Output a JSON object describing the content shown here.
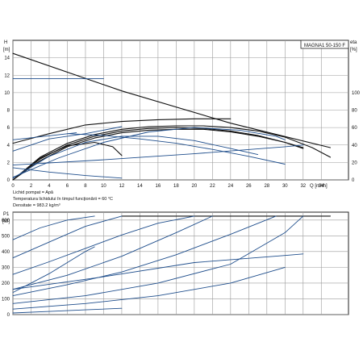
{
  "model_label": "MAGNA1 50-150 F",
  "chart_data": [
    {
      "type": "line",
      "name": "pump-curve",
      "ylabel_lines": [
        "H",
        "[m]"
      ],
      "y2label_lines": [
        "eta",
        "[%]"
      ],
      "xlabel": "Q [m³/h]",
      "xlim": [
        0,
        37
      ],
      "ylim": [
        0,
        16
      ],
      "y2lim": [
        0,
        160
      ],
      "grid": true,
      "x_ticks": [
        0,
        2,
        4,
        6,
        8,
        10,
        12,
        14,
        16,
        18,
        20,
        22,
        24,
        26,
        28,
        30,
        32,
        34
      ],
      "y_ticks": [
        0,
        2,
        4,
        6,
        8,
        10,
        12,
        14
      ],
      "y2_ticks": [
        0,
        20,
        40,
        60,
        80,
        100
      ],
      "notes": [
        "Lichid pompat = Apă",
        "Temperatura lichidului în timpul funcţionării = 60 °C",
        "Densitate = 983.2 kg/m³"
      ],
      "colors": {
        "black": "#111111",
        "blue": "#1f4e8c",
        "grid": "#9a9a9a"
      },
      "series": [
        {
          "color": "black",
          "x": [
            0,
            12,
            24,
            35
          ],
          "y": [
            14.5,
            10.2,
            6.5,
            3.7
          ]
        },
        {
          "color": "black",
          "x": [
            0,
            3,
            6,
            9,
            12,
            15,
            18,
            21,
            24,
            27,
            30,
            33,
            35
          ],
          "y": [
            0,
            2.6,
            4.2,
            5.2,
            5.8,
            6.1,
            6.2,
            6.2,
            6.0,
            5.6,
            4.9,
            3.7,
            2.6
          ]
        },
        {
          "color": "black",
          "x": [
            0,
            3,
            6,
            9,
            12,
            15,
            18,
            21,
            24,
            27,
            30,
            32
          ],
          "y": [
            0,
            2.4,
            4.0,
            5.0,
            5.6,
            5.9,
            6.0,
            5.9,
            5.6,
            5.1,
            4.3,
            3.6
          ]
        },
        {
          "color": "black",
          "x": [
            0,
            3,
            6,
            9,
            12,
            15,
            18,
            21,
            24,
            27,
            30,
            32
          ],
          "y": [
            0,
            2.2,
            3.8,
            4.8,
            5.4,
            5.7,
            5.8,
            5.8,
            5.5,
            5.0,
            4.3,
            3.7
          ]
        },
        {
          "color": "black",
          "x": [
            0,
            3,
            6,
            9,
            11,
            12
          ],
          "y": [
            0,
            2.5,
            3.9,
            4.3,
            3.8,
            2.8
          ]
        },
        {
          "color": "black",
          "x": [
            0,
            4,
            8,
            12,
            16,
            20,
            24
          ],
          "y": [
            4.2,
            5.3,
            6.3,
            6.7,
            6.9,
            7.0,
            7.0
          ]
        },
        {
          "color": "blue",
          "x": [
            0,
            5,
            10,
            15,
            20,
            25,
            29,
            30
          ],
          "y": [
            0.3,
            2.5,
            4.3,
            5.5,
            6.0,
            5.7,
            5.0,
            4.6
          ]
        },
        {
          "color": "blue",
          "x": [
            0,
            4,
            8,
            12,
            16,
            20,
            24,
            27
          ],
          "y": [
            0.2,
            2.7,
            4.3,
            5.0,
            5.0,
            4.5,
            3.6,
            2.9
          ]
        },
        {
          "color": "blue",
          "x": [
            0,
            4,
            8,
            12
          ],
          "y": [
            3.3,
            4.7,
            5.3,
            6.1
          ]
        },
        {
          "color": "blue",
          "x": [
            0,
            7
          ],
          "y": [
            4.6,
            5.4
          ]
        },
        {
          "color": "blue",
          "x": [
            0,
            10,
            20,
            30,
            32
          ],
          "y": [
            1.7,
            2.3,
            3.0,
            3.8,
            4.0
          ]
        },
        {
          "color": "blue",
          "x": [
            0,
            4,
            8,
            12
          ],
          "y": [
            1.4,
            0.9,
            0.5,
            0.2
          ]
        },
        {
          "color": "blue",
          "x": [
            6,
            10,
            14,
            18,
            22,
            26,
            30
          ],
          "y": [
            5.3,
            5.1,
            4.7,
            4.2,
            3.5,
            2.7,
            1.8
          ]
        },
        {
          "color": "blue",
          "x": [
            0,
            10
          ],
          "y": [
            11.6,
            11.6
          ]
        }
      ]
    },
    {
      "type": "line",
      "name": "power-curve",
      "ylabel_lines": [
        "P1",
        "[W]"
      ],
      "xlim": [
        0,
        37
      ],
      "ylim": [
        0,
        650
      ],
      "grid": true,
      "y_ticks": [
        0,
        100,
        200,
        300,
        400,
        500,
        600
      ],
      "colors": {
        "black": "#111111",
        "blue": "#1f4e8c",
        "grid": "#9a9a9a"
      },
      "series": [
        {
          "color": "black",
          "x": [
            12,
            35
          ],
          "y": [
            625,
            625
          ]
        },
        {
          "color": "blue",
          "x": [
            0,
            3,
            6,
            9
          ],
          "y": [
            475,
            550,
            600,
            625
          ]
        },
        {
          "color": "blue",
          "x": [
            0,
            4,
            8,
            12
          ],
          "y": [
            360,
            460,
            560,
            625
          ]
        },
        {
          "color": "blue",
          "x": [
            0,
            4,
            8,
            12,
            16,
            20
          ],
          "y": [
            255,
            335,
            420,
            505,
            580,
            625
          ]
        },
        {
          "color": "blue",
          "x": [
            0,
            6,
            12,
            18,
            22
          ],
          "y": [
            160,
            250,
            370,
            520,
            625
          ]
        },
        {
          "color": "blue",
          "x": [
            0,
            6,
            12,
            18,
            24,
            29
          ],
          "y": [
            120,
            190,
            270,
            380,
            510,
            625
          ]
        },
        {
          "color": "blue",
          "x": [
            0,
            8,
            16,
            24,
            30,
            32
          ],
          "y": [
            70,
            120,
            200,
            320,
            520,
            625
          ]
        },
        {
          "color": "blue",
          "x": [
            0,
            8,
            16,
            24,
            30
          ],
          "y": [
            35,
            70,
            120,
            200,
            300
          ]
        },
        {
          "color": "blue",
          "x": [
            0,
            4,
            8,
            12
          ],
          "y": [
            10,
            20,
            30,
            40
          ]
        },
        {
          "color": "blue",
          "x": [
            0,
            10,
            20,
            30,
            32
          ],
          "y": [
            160,
            240,
            330,
            375,
            385
          ]
        },
        {
          "color": "blue",
          "x": [
            0,
            4,
            8,
            9
          ],
          "y": [
            140,
            260,
            400,
            430
          ]
        }
      ]
    }
  ]
}
